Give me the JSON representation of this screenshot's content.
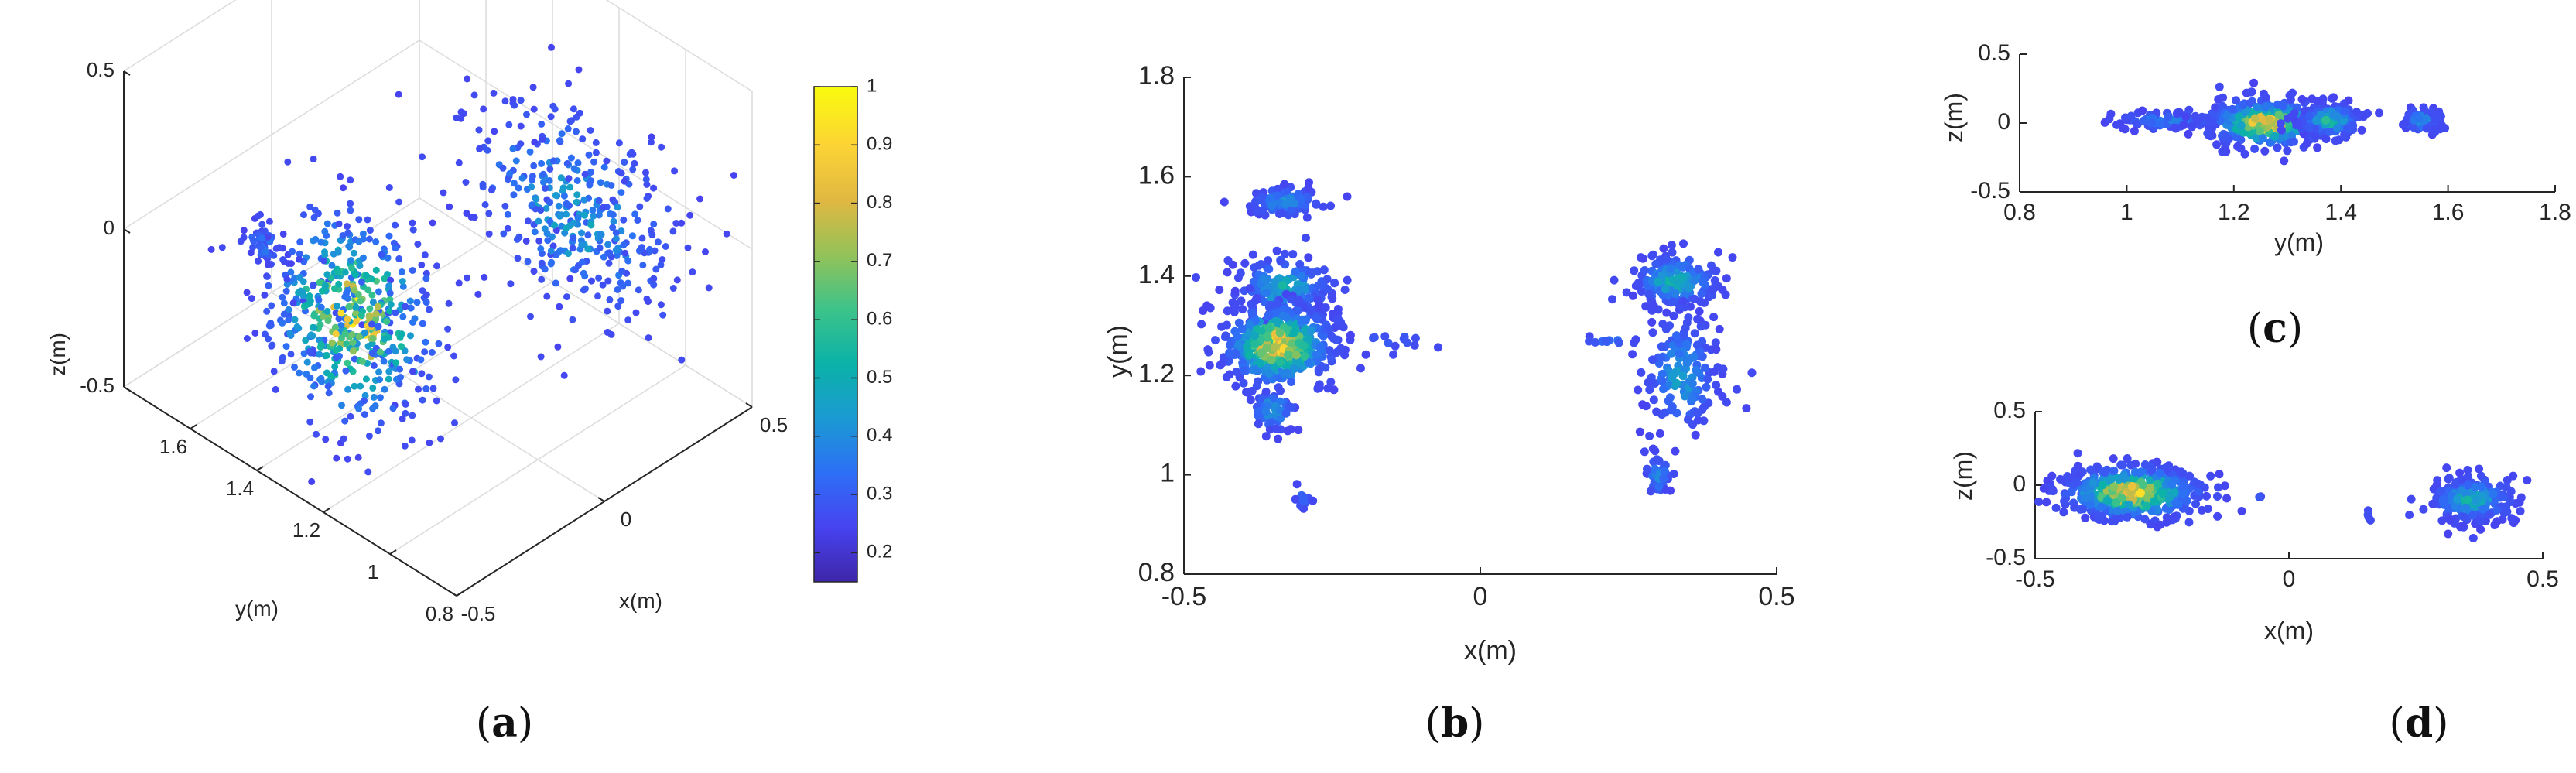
{
  "figure": {
    "panels": {
      "a": {
        "letter": "a"
      },
      "b": {
        "letter": "b"
      },
      "c": {
        "letter": "c"
      },
      "d": {
        "letter": "d"
      }
    }
  },
  "colors": {
    "background": "#ffffff",
    "axis": "#262626",
    "grid": "#dcdcdc",
    "colormap": [
      "#3e26a8",
      "#4743f0",
      "#2d6ff6",
      "#1b9ad2",
      "#0bb2a8",
      "#3cc38a",
      "#93c258",
      "#e0b842",
      "#fcd335",
      "#f9fb0e"
    ]
  },
  "chart_data": [
    {
      "id": "a",
      "type": "scatter",
      "projection": "3d",
      "title": "",
      "xlabel": "x(m)",
      "ylabel": "y(m)",
      "zlabel": "z(m)",
      "xlim": [
        -0.5,
        0.5
      ],
      "ylim": [
        0.8,
        1.8
      ],
      "zlim": [
        -0.5,
        0.5
      ],
      "x_ticks": [
        "-0.5",
        "0",
        "0.5"
      ],
      "y_ticks": [
        "0.8",
        "1",
        "1.2",
        "1.4",
        "1.6"
      ],
      "z_ticks": [
        "-0.5",
        "0",
        "0.5"
      ],
      "grid": true,
      "colorbar": {
        "range": [
          0.15,
          1
        ],
        "ticks": [
          "1",
          "0.9",
          "0.8",
          "0.7",
          "0.6",
          "0.5",
          "0.4",
          "0.3",
          "0.2"
        ]
      },
      "clusters": [
        {
          "x": [
            -0.45,
            -0.18
          ],
          "y": [
            1.1,
            1.45
          ],
          "z": [
            -0.3,
            0.2
          ],
          "count": 520,
          "peak": 1.0
        },
        {
          "x": [
            -0.33,
            -0.28
          ],
          "y": [
            1.5,
            1.6
          ],
          "z": [
            -0.05,
            0.05
          ],
          "count": 60,
          "peak": 0.3
        },
        {
          "x": [
            0.22,
            0.46
          ],
          "y": [
            0.95,
            1.45
          ],
          "z": [
            -0.3,
            0.2
          ],
          "count": 380,
          "peak": 0.45
        }
      ]
    },
    {
      "id": "b",
      "type": "scatter",
      "title": "",
      "xlabel": "x(m)",
      "ylabel": "y(m)",
      "xlim": [
        -0.5,
        0.5
      ],
      "ylim": [
        0.8,
        1.8
      ],
      "x_ticks": [
        "-0.5",
        "0",
        "0.5"
      ],
      "y_ticks": [
        "0.8",
        "1",
        "1.2",
        "1.4",
        "1.6",
        "1.8"
      ],
      "grid": false,
      "clusters": [
        {
          "cx": -0.33,
          "cy": 1.55,
          "rx": 0.06,
          "ry": 0.03,
          "count": 90,
          "peak": 0.35
        },
        {
          "cx": -0.33,
          "cy": 1.38,
          "rx": 0.08,
          "ry": 0.06,
          "count": 160,
          "peak": 0.45
        },
        {
          "cx": -0.34,
          "cy": 1.26,
          "rx": 0.09,
          "ry": 0.08,
          "count": 420,
          "peak": 1.0
        },
        {
          "cx": -0.35,
          "cy": 1.13,
          "rx": 0.04,
          "ry": 0.04,
          "count": 60,
          "peak": 0.4
        },
        {
          "cx": -0.3,
          "cy": 0.95,
          "rx": 0.015,
          "ry": 0.02,
          "count": 14,
          "peak": 0.25
        },
        {
          "cx": -0.15,
          "cy": 1.27,
          "rx": 0.08,
          "ry": 0.015,
          "count": 14,
          "peak": 0.2
        },
        {
          "cx": 0.33,
          "cy": 1.39,
          "rx": 0.07,
          "ry": 0.05,
          "count": 180,
          "peak": 0.5
        },
        {
          "cx": 0.34,
          "cy": 1.2,
          "rx": 0.06,
          "ry": 0.12,
          "count": 160,
          "peak": 0.4
        },
        {
          "cx": 0.3,
          "cy": 1.0,
          "rx": 0.02,
          "ry": 0.04,
          "count": 40,
          "peak": 0.35
        },
        {
          "cx": 0.22,
          "cy": 1.27,
          "rx": 0.05,
          "ry": 0.01,
          "count": 12,
          "peak": 0.25
        }
      ]
    },
    {
      "id": "c",
      "type": "scatter",
      "title": "",
      "xlabel": "y(m)",
      "ylabel": "z(m)",
      "xlim": [
        0.8,
        1.8
      ],
      "ylim": [
        -0.5,
        0.5
      ],
      "x_ticks": [
        "0.8",
        "1",
        "1.2",
        "1.4",
        "1.6",
        "1.8"
      ],
      "y_ticks": [
        "-0.5",
        "0",
        "0.5"
      ],
      "grid": false,
      "clusters": [
        {
          "cx": 1.08,
          "cy": 0.02,
          "rx": 0.1,
          "ry": 0.06,
          "count": 110,
          "peak": 0.3
        },
        {
          "cx": 1.26,
          "cy": 0.0,
          "rx": 0.1,
          "ry": 0.16,
          "count": 380,
          "peak": 1.0
        },
        {
          "cx": 1.38,
          "cy": 0.02,
          "rx": 0.06,
          "ry": 0.11,
          "count": 200,
          "peak": 0.5
        },
        {
          "cx": 1.55,
          "cy": 0.02,
          "rx": 0.035,
          "ry": 0.09,
          "count": 70,
          "peak": 0.35
        }
      ]
    },
    {
      "id": "d",
      "type": "scatter",
      "title": "",
      "xlabel": "x(m)",
      "ylabel": "z(m)",
      "xlim": [
        -0.5,
        0.5
      ],
      "ylim": [
        -0.5,
        0.5
      ],
      "x_ticks": [
        "-0.5",
        "0",
        "0.5"
      ],
      "y_ticks": [
        "-0.5",
        "0",
        "0.5"
      ],
      "grid": false,
      "clusters": [
        {
          "cx": -0.31,
          "cy": -0.05,
          "rx": 0.13,
          "ry": 0.17,
          "count": 480,
          "peak": 1.0
        },
        {
          "cx": 0.36,
          "cy": -0.1,
          "rx": 0.08,
          "ry": 0.14,
          "count": 240,
          "peak": 0.5
        },
        {
          "cx": -0.06,
          "cy": -0.08,
          "rx": 0.005,
          "ry": 0.005,
          "count": 2,
          "peak": 0.2
        },
        {
          "cx": 0.16,
          "cy": -0.2,
          "rx": 0.008,
          "ry": 0.04,
          "count": 4,
          "peak": 0.2
        }
      ]
    }
  ]
}
